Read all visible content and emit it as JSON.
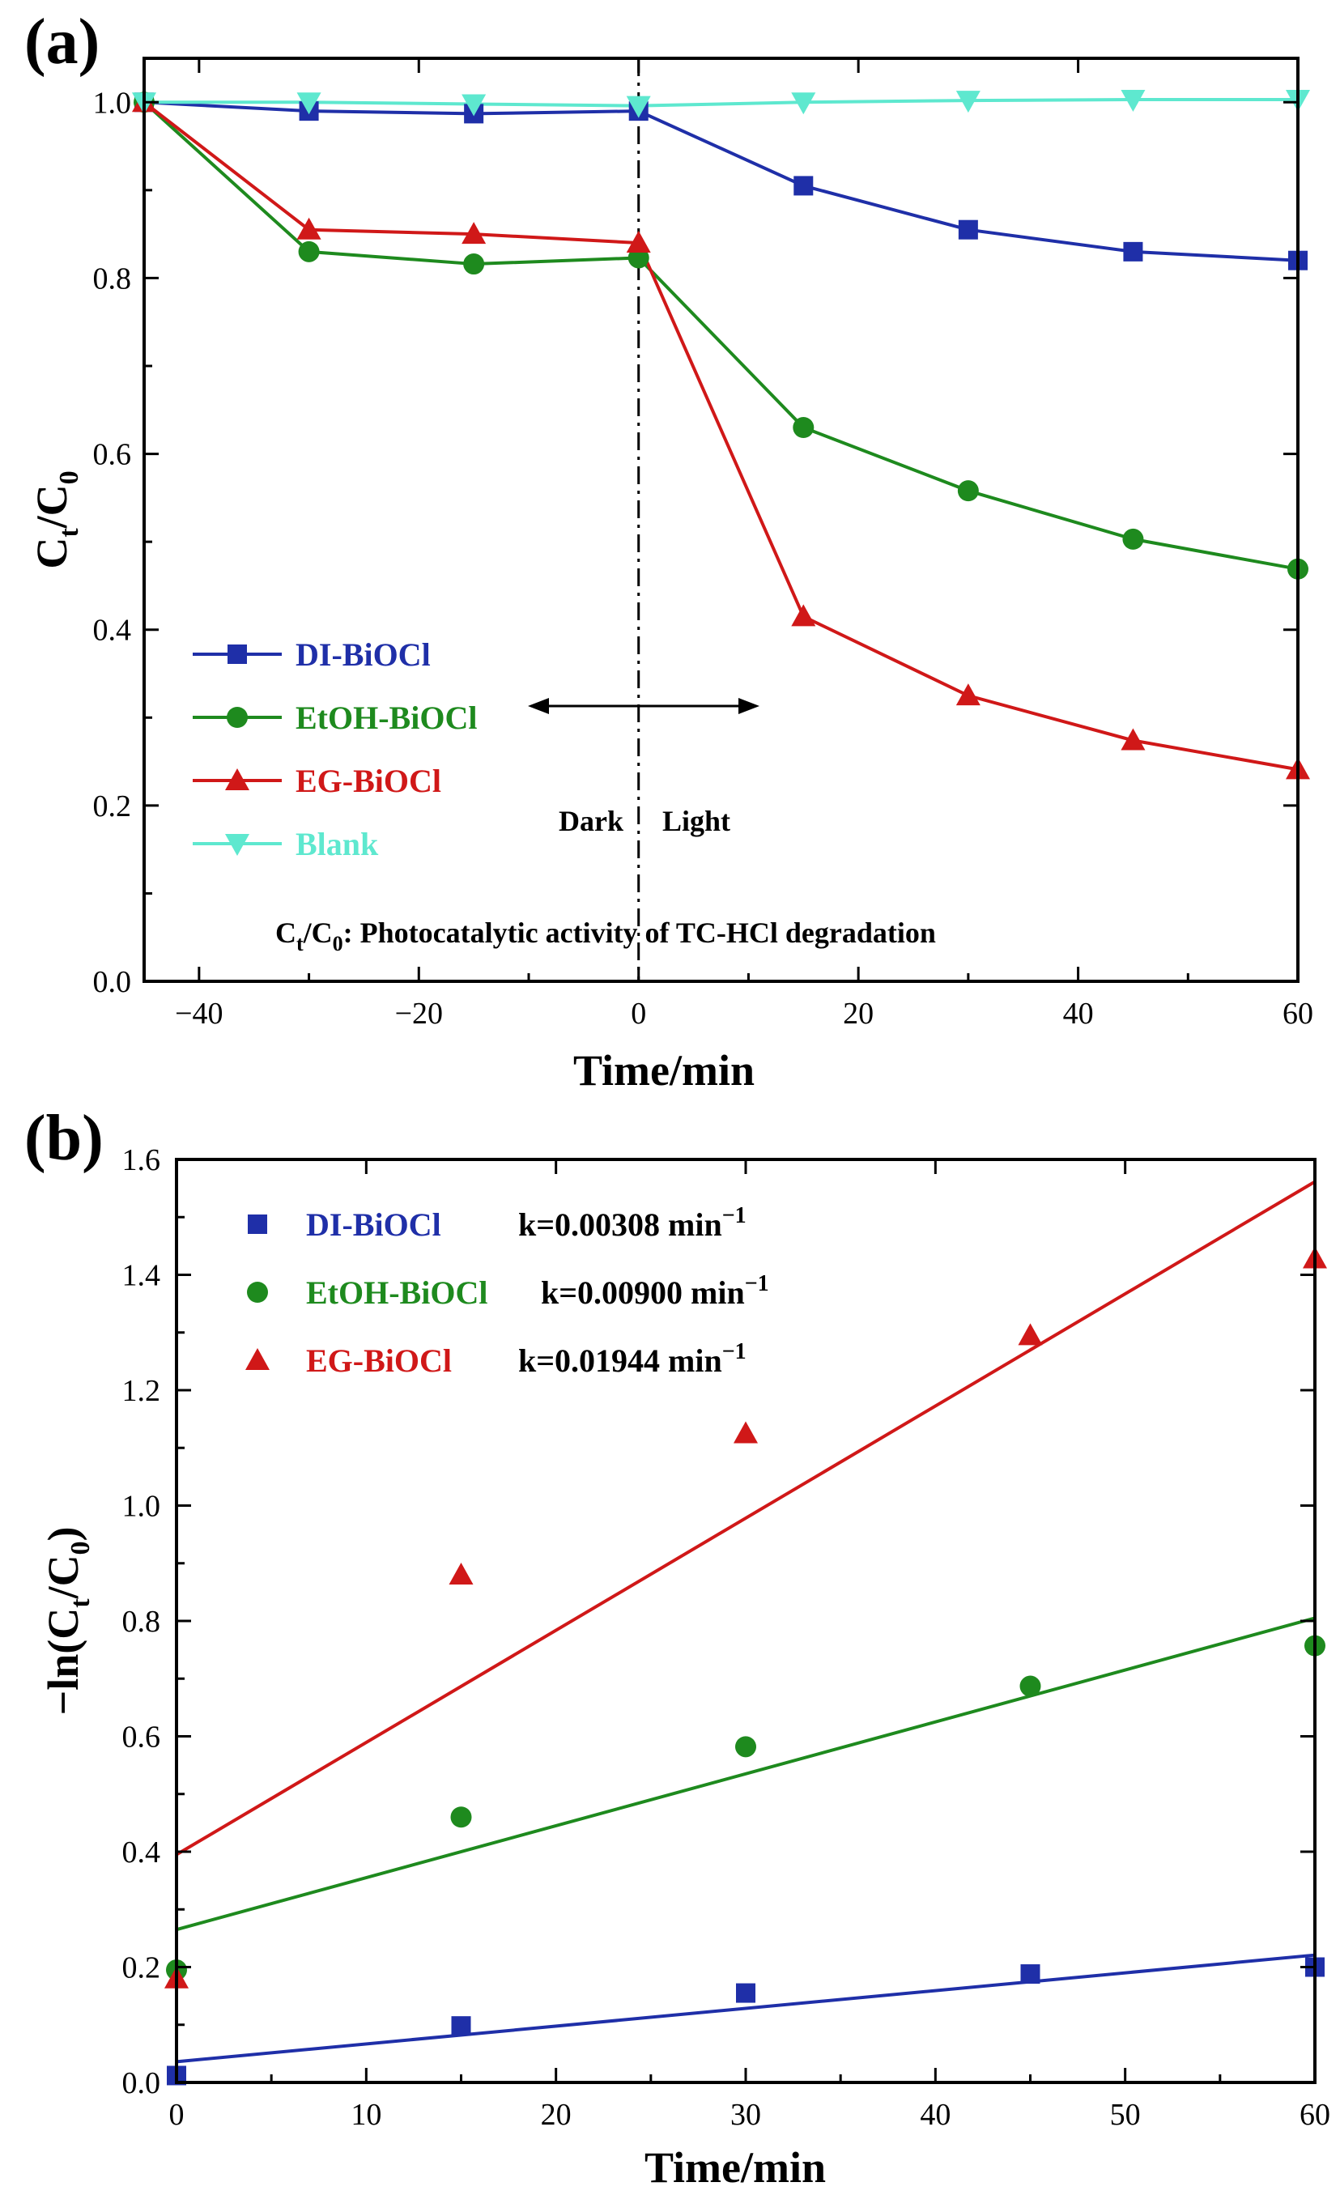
{
  "chart_data": [
    {
      "panel": "(a)",
      "type": "line",
      "xlabel": "Time/min",
      "ylabel": "Ct/C0",
      "xlim": [
        -45,
        60
      ],
      "ylim": [
        0.0,
        1.05
      ],
      "xticks": [
        "−40",
        "−20",
        "0",
        "20",
        "40",
        "60"
      ],
      "yticks": [
        "0.0",
        "0.2",
        "0.4",
        "0.6",
        "0.8",
        "1.0"
      ],
      "x": [
        -45,
        -30,
        -15,
        0,
        15,
        30,
        45,
        60
      ],
      "series": [
        {
          "name": "DI-BiOCl",
          "color": "#1f2fa8",
          "marker": "square",
          "values": [
            1.0,
            0.99,
            0.987,
            0.99,
            0.905,
            0.855,
            0.83,
            0.82
          ]
        },
        {
          "name": "EtOH-BiOCl",
          "color": "#1e8a1e",
          "marker": "circle",
          "values": [
            1.0,
            0.83,
            0.816,
            0.823,
            0.63,
            0.558,
            0.503,
            0.469
          ]
        },
        {
          "name": "EG-BiOCl",
          "color": "#d01818",
          "marker": "triangle-up",
          "values": [
            1.0,
            0.855,
            0.85,
            0.84,
            0.415,
            0.325,
            0.274,
            0.241
          ]
        },
        {
          "name": "Blank",
          "color": "#5ee8cf",
          "marker": "triangle-down",
          "values": [
            1.0,
            1.0,
            0.998,
            0.996,
            1.0,
            1.002,
            1.003,
            1.003
          ]
        }
      ],
      "divider_x": 0,
      "annotations": {
        "dark": "Dark",
        "light": "Light",
        "note_main": "Ct/C0: Photocatalytic activity of TC-HCl degradation",
        "note_prefix": "C",
        "note_sub_t": "t",
        "note_slash": "/C",
        "note_sub_0": "0",
        "note_rest": ": Photocatalytic activity of TC-HCl degradation"
      },
      "ylabel_parts": {
        "main": "C",
        "sub1": "t",
        "mid": "/C",
        "sub2": "0"
      }
    },
    {
      "panel": "(b)",
      "type": "scatter",
      "xlabel": "Time/min",
      "ylabel": "-ln(Ct/C0)",
      "xlim": [
        0,
        60
      ],
      "ylim": [
        0.0,
        1.6
      ],
      "xticks": [
        "0",
        "10",
        "20",
        "30",
        "40",
        "50",
        "60"
      ],
      "yticks": [
        "0.0",
        "0.2",
        "0.4",
        "0.6",
        "0.8",
        "1.0",
        "1.2",
        "1.4",
        "1.6"
      ],
      "x": [
        0,
        15,
        30,
        45,
        60
      ],
      "series": [
        {
          "name": "DI-BiOCl",
          "k_label": "k=0.00308 min",
          "color": "#1f2fa8",
          "marker": "square",
          "values": [
            0.012,
            0.098,
            0.155,
            0.188,
            0.2
          ],
          "fit": {
            "slope": 0.00308,
            "intercept": 0.036
          }
        },
        {
          "name": "EtOH-BiOCl",
          "k_label": "k=0.00900 min",
          "color": "#1e8a1e",
          "marker": "circle",
          "values": [
            0.195,
            0.46,
            0.582,
            0.687,
            0.757
          ],
          "fit": {
            "slope": 0.009,
            "intercept": 0.265
          }
        },
        {
          "name": "EG-BiOCl",
          "k_label": "k=0.01944 min",
          "color": "#d01818",
          "marker": "triangle-up",
          "values": [
            0.18,
            0.88,
            1.125,
            1.295,
            1.428
          ],
          "fit": {
            "slope": 0.01944,
            "intercept": 0.395
          }
        }
      ],
      "k_superscript": "−1",
      "ylabel_parts": {
        "pre": "−ln(C",
        "sub1": "t",
        "mid": "/C",
        "sub2": "0",
        "post": ")"
      }
    }
  ]
}
